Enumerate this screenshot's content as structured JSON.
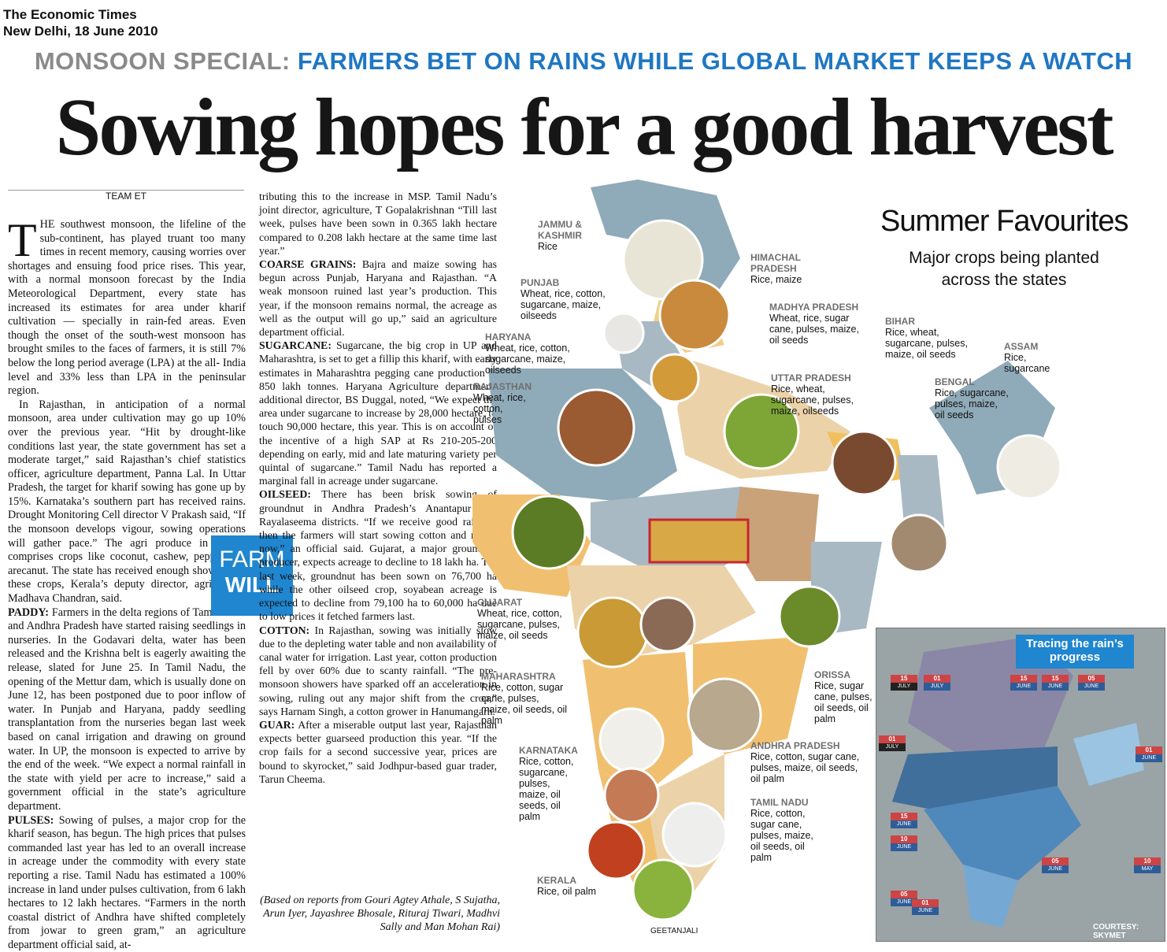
{
  "publication": {
    "name": "The Economic Times",
    "dateline": "New Delhi, 18 June 2010"
  },
  "kicker": {
    "label": "MONSOON SPECIAL:",
    "text": "FARMERS BET ON RAINS WHILE GLOBAL MARKET KEEPS A WATCH"
  },
  "headline": "Sowing hopes for a good harvest",
  "byline": "TEAM ET",
  "farm_will": {
    "line1": "FARM",
    "line2": "WILL"
  },
  "article": {
    "col1_dropcap": "T",
    "col1_p1": "HE southwest monsoon, the lifeline of the sub-continent, has played truant too many times in recent memory, causing worries over shortages and ensuing food price rises. This year, with a normal monsoon forecast by the India Meteorological Department, every state has increased its estimates for area under kharif cultivation — specially in rain-fed areas. Even though the onset of the south-west monsoon has brought smiles to the faces of farmers, it is still 7% below the long period average (LPA) at the all- India level and 33% less than LPA in the peninsular region.",
    "col1_p2": "In Rajasthan, in anticipation of a normal monsoon, area under cultivation may go up 10% over the previous year. “Hit by drought-like conditions last year, the state government has set a moderate target,” said Rajasthan’s chief statistics officer, agriculture department, Panna Lal. In Uttar Pradesh, the target for kharif sowing has gone up by 15%. Karnataka’s southern part has received rains. Drought Monitoring Cell director V Prakash said, “If the monsoon develops vigour, sowing operations will gather pace.” The agri produce in Kerala comprises crops like coconut, cashew, pepper and arecanut. The state has received enough showers for these crops, Kerala’s deputy director, agriculture, Madhava Chandran, said.",
    "paddy_head": "PADDY:",
    "paddy_text": "Farmers in the delta regions of Tamil Nadu and Andhra Pradesh have started raising seedlings in nurseries. In the Godavari delta, water has been released and the Krishna belt is eagerly awaiting the release, slated for June 25. In Tamil Nadu, the opening of the Mettur dam, which is usually done on June 12, has been postponed due to poor inflow of water. In Punjab and Haryana, paddy seedling transplantation from the nurseries began last week based on canal irrigation and drawing on ground water. In UP, the monsoon is expected to arrive by the end of the week. “We expect a normal rainfall in the state with yield per acre to increase,” said a government official in the state’s agriculture department.",
    "pulses_head": "PULSES:",
    "pulses_text": "Sowing of pulses, a major crop for the kharif season, has begun. The high prices that pulses commanded last year has led to an overall increase in acreage under the commodity with every state reporting a rise. Tamil Nadu has estimated a 100% increase in land under pulses cultivation, from 6 lakh hectares to 12 lakh hectares. “Farmers in the north coastal district of Andhra have shifted completely from jowar to green gram,” an agriculture department official said, at-",
    "col2_p1": "tributing this to the increase in MSP. Tamil Nadu’s joint director, agriculture, T Gopalakrishnan “Till last week, pulses have been sown in 0.365 lakh hectare compared to 0.208 lakh hectare at the same time last year.”",
    "coarse_head": "COARSE GRAINS:",
    "coarse_text": "Bajra and maize sowing has begun across Punjab, Haryana and Rajasthan. “A weak monsoon ruined last year’s production. This year, if the monsoon remains normal, the acreage as well as the output will go up,” said an agriculture department official.",
    "sugar_head": "SUGARCANE:",
    "sugar_text": "Sugarcane, the big crop in UP and Maharashtra, is set to get a fillip this kharif, with early estimates in Maharashtra pegging cane production at 850 lakh tonnes. Haryana Agriculture department, additional director, BS Duggal, noted, “We expect the area under sugarcane to increase by 28,000 hectare, to touch 90,000 hectare, this year. This is on account of the incentive of a high SAP at Rs 210-205-200 depending on early, mid and late maturing variety per quintal of sugarcane.” Tamil Nadu has reported a marginal fall in acreage under sugarcane.",
    "oil_head": "OILSEED:",
    "oil_text": "There has been brisk sowing of groundnut in Andhra Pradesh’s Anantapur and Rayalaseema districts. “If we receive good rainfall, then the farmers will start sowing cotton and maize now,” an official said. Gujarat, a major groundnut producer, expects acreage to decline to 18 lakh ha. Till last week, groundnut has been sown on 76,700 ha while the other oilseed crop, soyabean acreage is expected to decline from 79,100 ha to 60,000 ha due to low prices it fetched farmers last.",
    "cotton_head": "COTTON:",
    "cotton_text": "In Rajasthan, sowing was initially slow due to the depleting water table and non availability of canal water for irrigation. Last year, cotton production fell by over 60% due to scanty rainfall. “The pre-monsoon showers have sparked off an acceleration in sowing, ruling out any major shift from the crop,” says Harnam Singh, a cotton grower in Hanumangarh.",
    "guar_head": "GUAR:",
    "guar_text": "After a miserable output last year, Rajasthan expects better guarseed production this year. “If the crop fails for a second successive year, prices are bound to skyrocket,” said Jodhpur-based guar trader, Tarun Cheema.",
    "credit": "(Based on reports from Gouri Agtey Athale, S Sujatha, Arun Iyer, Jayashree Bhosale, Rituraj Tiwari, Madhvi Sally and Man Mohan Rai)"
  },
  "graphic": {
    "title": "Summer Favourites",
    "subtitle": "Major crops being planted across the states",
    "artist": "GEETANJALI",
    "states": [
      {
        "name": "JAMMU & KASHMIR",
        "crops": "Rice"
      },
      {
        "name": "HIMACHAL PRADESH",
        "crops": "Rice, maize"
      },
      {
        "name": "PUNJAB",
        "crops": "Wheat, rice, cotton, sugarcane, maize, oilseeds"
      },
      {
        "name": "MADHYA PRADESH",
        "crops": "Wheat, rice, sugar cane, pulses, maize, oil seeds"
      },
      {
        "name": "BIHAR",
        "crops": "Rice, wheat, sugarcane, pulses, maize, oil seeds"
      },
      {
        "name": "ASSAM",
        "crops": "Rice, sugarcane"
      },
      {
        "name": "HARYANA",
        "crops": "Wheat, rice, cotton, sugarcane, maize, oilseeds"
      },
      {
        "name": "UTTAR PRADESH",
        "crops": "Rice, wheat, sugarcane, pulses, maize, oilseeds"
      },
      {
        "name": "BENGAL",
        "crops": "Rice, sugarcane, pulses, maize, oil seeds"
      },
      {
        "name": "RAJASTHAN",
        "crops": "Wheat, rice, cotton, pulses"
      },
      {
        "name": "GUJARAT",
        "crops": "Wheat, rice, cotton, sugarcane, pulses, maize, oil seeds"
      },
      {
        "name": "MAHARASHTRA",
        "crops": "Rice, cotton, sugar cane, pulses, maize, oil seeds, oil palm"
      },
      {
        "name": "ORISSA",
        "crops": "Rice, sugar cane, pulses, oil seeds, oil palm"
      },
      {
        "name": "ANDHRA PRADESH",
        "crops": "Rice, cotton, sugar cane, pulses, maize, oil seeds, oil palm"
      },
      {
        "name": "KARNATAKA",
        "crops": "Rice, cotton, sugarcane, pulses, maize, oil seeds, oil palm"
      },
      {
        "name": "TAMIL NADU",
        "crops": "Rice, cotton, sugar cane, pulses, maize, oil seeds, oil palm"
      },
      {
        "name": "KERALA",
        "crops": "Rice, oil palm"
      }
    ]
  },
  "inset": {
    "title": "Tracing the rain’s progress",
    "courtesy": "COURTESY: SKYMET",
    "dates": [
      {
        "day": "15",
        "month": "JULY"
      },
      {
        "day": "01",
        "month": "JULY"
      },
      {
        "day": "15",
        "month": "JUNE"
      },
      {
        "day": "15",
        "month": "JUNE"
      },
      {
        "day": "05",
        "month": "JUNE"
      },
      {
        "day": "01",
        "month": "JULY"
      },
      {
        "day": "01",
        "month": "JUNE"
      },
      {
        "day": "15",
        "month": "JUNE"
      },
      {
        "day": "10",
        "month": "JUNE"
      },
      {
        "day": "05",
        "month": "JUNE"
      },
      {
        "day": "10",
        "month": "MAY"
      },
      {
        "day": "05",
        "month": "JUNE"
      },
      {
        "day": "01",
        "month": "JUNE"
      }
    ]
  },
  "colors": {
    "accent_blue": "#1f86cf",
    "kicker_grey": "#8a8a8a",
    "marker_red": "#c8262e"
  }
}
